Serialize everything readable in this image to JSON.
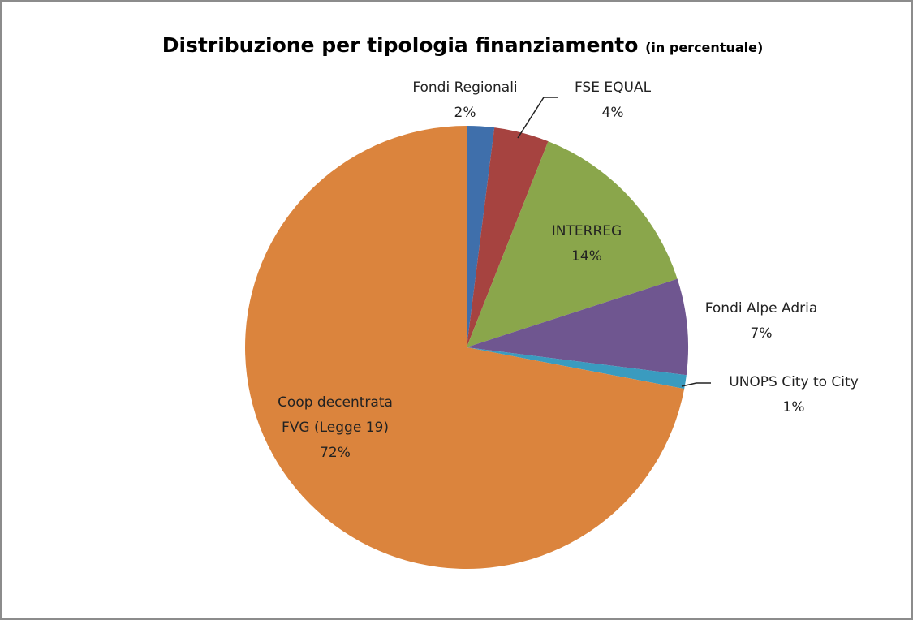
{
  "chart_data": {
    "type": "pie",
    "title": "Distribuzione per tipologia finanziamento",
    "subtitle": "(in percentuale)",
    "categories": [
      "Fondi Regionali",
      "FSE EQUAL",
      "INTERREG",
      "Fondi Alpe Adria",
      "UNOPS City to City",
      "Coop decentrata FVG (Legge 19)"
    ],
    "values": [
      2,
      4,
      14,
      7,
      1,
      72
    ],
    "value_labels": [
      "2%",
      "4%",
      "14%",
      "7%",
      "1%",
      "72%"
    ],
    "colors": [
      "#3f6fab",
      "#a64340",
      "#8aa64b",
      "#6f5690",
      "#3a9bbf",
      "#db843d"
    ]
  }
}
